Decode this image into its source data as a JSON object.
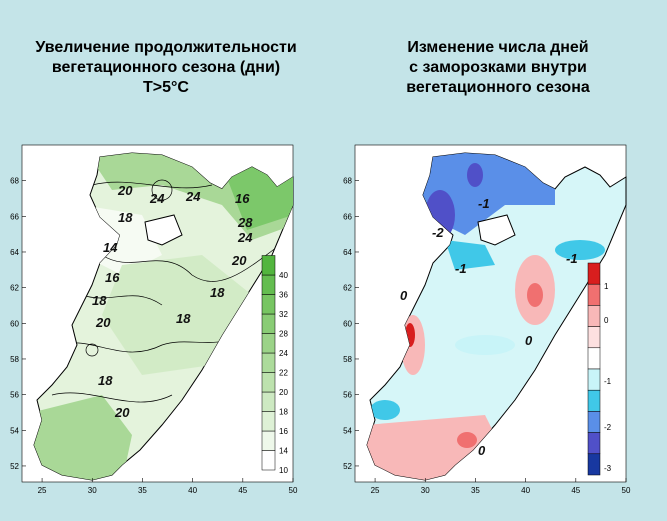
{
  "left_panel": {
    "title_lines": [
      "Увеличение продолжительности",
      "вегетационного сезона (дни)",
      "T>5°C"
    ],
    "contour_labels": [
      "20",
      "24",
      "24",
      "18",
      "16",
      "28",
      "24",
      "14",
      "16",
      "20",
      "18",
      "20",
      "18",
      "18",
      "18",
      "20"
    ],
    "colorbar_labels": [
      "10",
      "14",
      "16",
      "18",
      "20",
      "22",
      "24",
      "28",
      "32",
      "36",
      "40"
    ],
    "colorbar_colors": [
      "#ffffff",
      "#eef8ea",
      "#def1d6",
      "#cde9c2",
      "#bde2ae",
      "#acdb9b",
      "#9bd388",
      "#89cc75",
      "#77c562",
      "#64bd50",
      "#52b53e"
    ]
  },
  "right_panel": {
    "title_lines": [
      "Изменение числа дней",
      "с заморозками внутри",
      "вегетационного сезона"
    ],
    "contour_labels": [
      "-1",
      "-2",
      "-1",
      "-1",
      "0",
      "0",
      "0"
    ],
    "colorbar_labels": [
      "1",
      "0",
      "-1",
      "-2",
      "-3"
    ],
    "colorbar_colors": [
      "#d81e1e",
      "#f07070",
      "#f8b8b8",
      "#fde0e0",
      "#ffffff",
      "#c8f4f8",
      "#40c8e8",
      "#5a8fe8",
      "#5050c8",
      "#1838a0"
    ]
  },
  "axes": {
    "xlim": [
      23,
      50
    ],
    "ylim": [
      51.1,
      70
    ],
    "xticks": [
      25,
      30,
      35,
      40,
      45,
      50
    ],
    "yticks": [
      52,
      54,
      56,
      58,
      60,
      62,
      64,
      66,
      68
    ]
  }
}
